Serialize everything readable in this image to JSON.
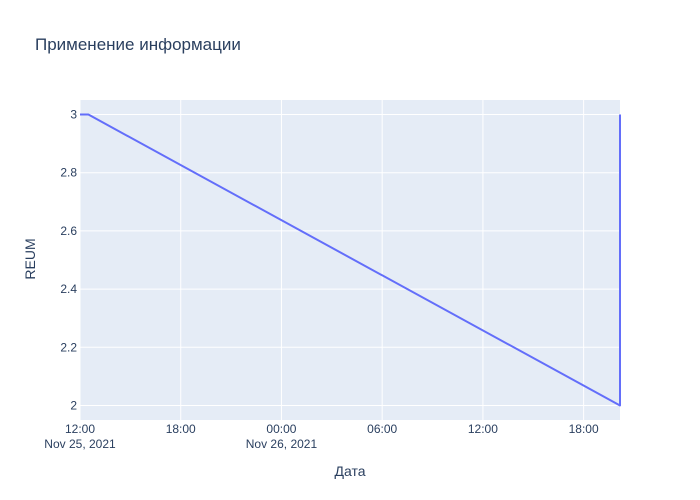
{
  "chart_data": {
    "type": "line",
    "title": "Применение информации",
    "xlabel": "Дата",
    "ylabel": "REUM",
    "x_ticks": [
      {
        "time": "2021-11-25T12:00",
        "label": "12:00",
        "sublabel": "Nov 25, 2021"
      },
      {
        "time": "2021-11-25T18:00",
        "label": "18:00",
        "sublabel": ""
      },
      {
        "time": "2021-11-26T00:00",
        "label": "00:00",
        "sublabel": "Nov 26, 2021"
      },
      {
        "time": "2021-11-26T06:00",
        "label": "06:00",
        "sublabel": ""
      },
      {
        "time": "2021-11-26T12:00",
        "label": "12:00",
        "sublabel": ""
      },
      {
        "time": "2021-11-26T18:00",
        "label": "18:00",
        "sublabel": ""
      }
    ],
    "y_ticks": [
      2,
      2.2,
      2.4,
      2.6,
      2.8,
      3
    ],
    "xlim": [
      "2021-11-25T12:00",
      "2021-11-26T20:10"
    ],
    "ylim": [
      1.95,
      3.05
    ],
    "grid": true,
    "series": [
      {
        "color": "#636efa",
        "points": [
          {
            "x": "2021-11-25T12:00",
            "y": 3
          },
          {
            "x": "2021-11-25T12:30",
            "y": 3
          },
          {
            "x": "2021-11-26T20:10",
            "y": 2
          },
          {
            "x": "2021-11-26T20:10",
            "y": 3
          }
        ]
      }
    ],
    "colors": {
      "plot_bg": "#e5ecf6",
      "grid": "#ffffff",
      "text": "#2a3f5f"
    }
  }
}
